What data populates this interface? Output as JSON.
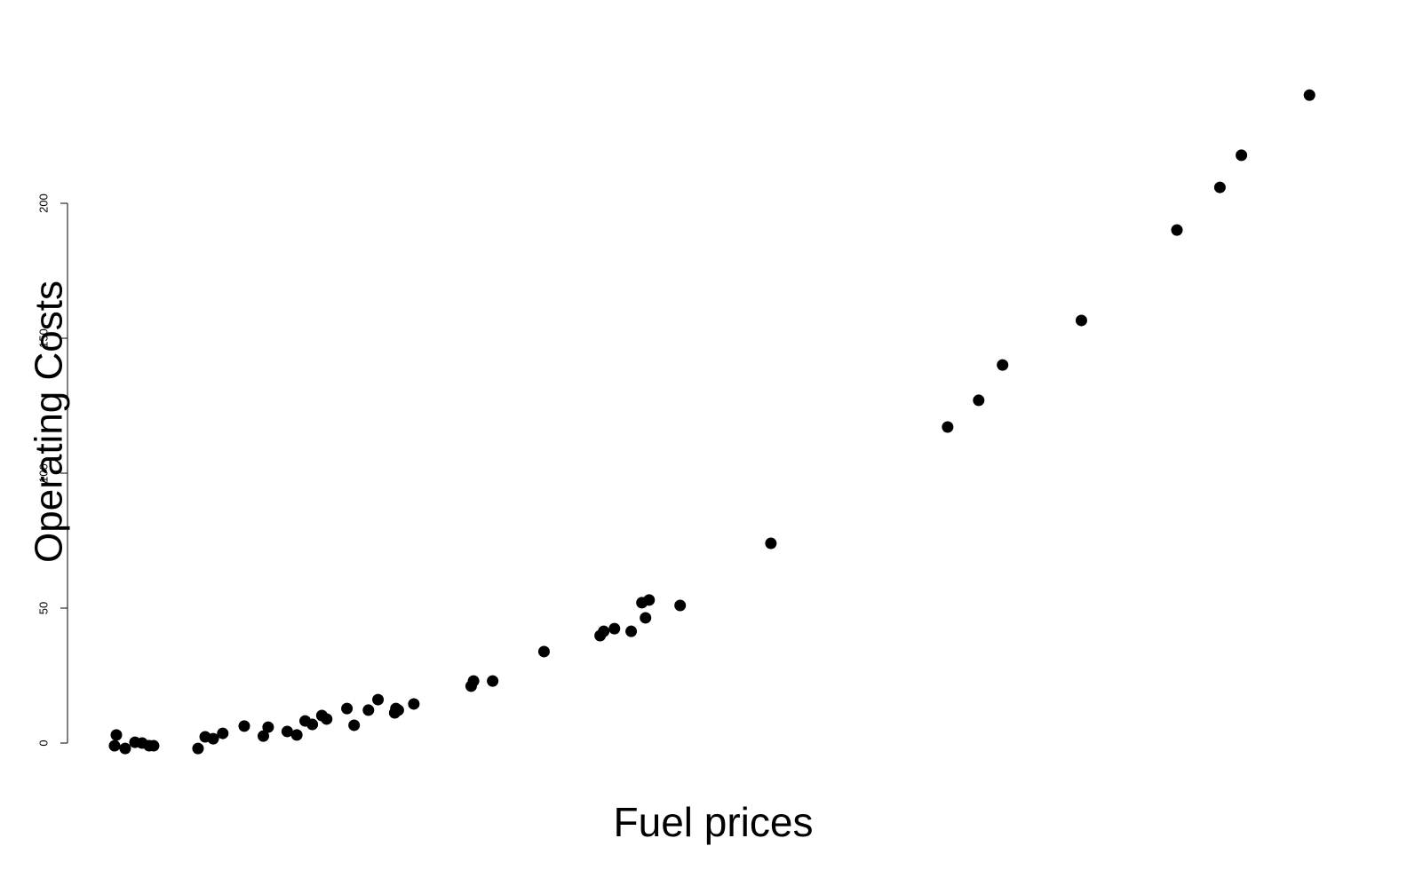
{
  "chart_data": {
    "type": "scatter",
    "x_label": "Fuel prices",
    "y_label": "Operating Costs",
    "x": [
      0.09,
      -0.06,
      0.83,
      1.65,
      2.25,
      2.84,
      3.21,
      6.93,
      7.53,
      8.2,
      9.0,
      10.8,
      12.4,
      12.8,
      14.4,
      15.2,
      15.9,
      16.5,
      17.3,
      17.7,
      19.4,
      20.0,
      21.2,
      22.0,
      23.4,
      23.5,
      23.7,
      25.0,
      29.8,
      30.0,
      31.6,
      35.9,
      40.6,
      40.9,
      41.8,
      43.2,
      44.1,
      44.4,
      44.7,
      47.3,
      54.9,
      69.7,
      72.3,
      74.3,
      80.9,
      88.9,
      92.5,
      94.3,
      100
    ],
    "values": [
      3.0,
      -1.0,
      -2.0,
      0.3,
      0,
      -1.0,
      -1.0,
      -2.0,
      2.3,
      1.6,
      3.6,
      6.3,
      2.6,
      5.9,
      4.3,
      3.0,
      8.2,
      6.9,
      10.2,
      8.9,
      12.8,
      6.6,
      12.2,
      16.1,
      11.2,
      12.8,
      12.2,
      14.5,
      21.1,
      23.0,
      23.0,
      33.9,
      39.8,
      41.4,
      42.4,
      41.4,
      52.0,
      46.4,
      53.0,
      51.0,
      74.0,
      117.1,
      127.0,
      140.1,
      156.6,
      190.1,
      205.9,
      217.8,
      240.1
    ],
    "color": "#000000",
    "xlim": [
      -4,
      104
    ],
    "ylim": [
      -12,
      250
    ],
    "yticks": [
      0,
      50,
      100,
      150,
      200
    ],
    "grid": false
  }
}
